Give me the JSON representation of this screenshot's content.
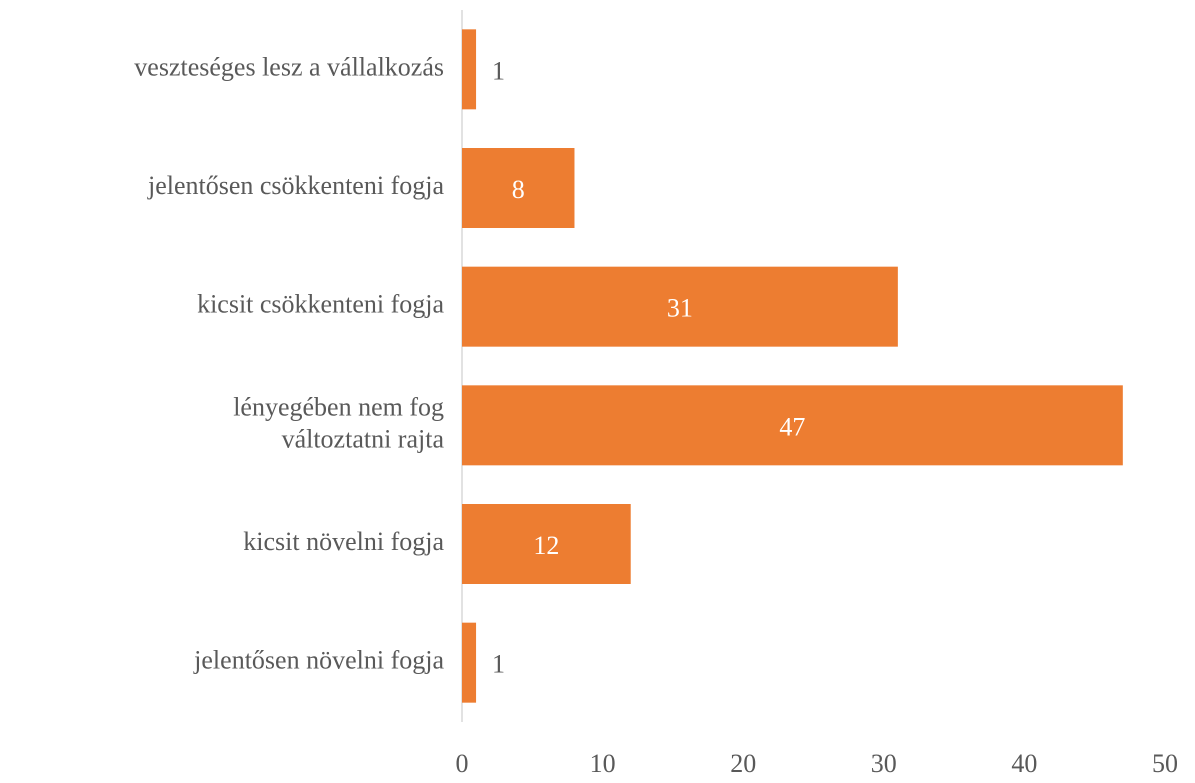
{
  "chart_data": {
    "type": "barh",
    "categories": [
      "veszteséges lesz a vállalkozás",
      "jelentősen csökkenteni fogja",
      "kicsit csökkenteni fogja",
      "lényegében nem fog\nváltoztatni rajta",
      "kicsit növelni fogja",
      "jelentősen növelni fogja"
    ],
    "values": [
      1,
      8,
      31,
      47,
      12,
      1
    ],
    "color": "#ed7d31",
    "xlim": [
      0,
      50
    ],
    "xticks": [
      0,
      10,
      20,
      30,
      40,
      50
    ],
    "grid": false
  }
}
